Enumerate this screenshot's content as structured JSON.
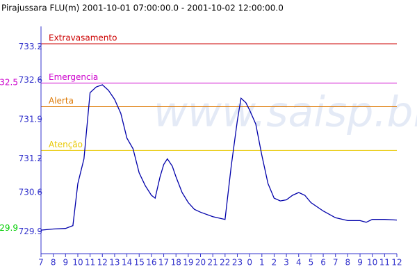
{
  "chart_data": {
    "type": "line",
    "title": "Pirajussara FLU(m) 2001-10-01 07:00:00.0 - 2001-10-02 12:00:00.0",
    "watermark": "www.saisp.br",
    "xlim": [
      7,
      36
    ],
    "xticks": [
      7,
      8,
      9,
      10,
      11,
      12,
      13,
      14,
      15,
      16,
      17,
      18,
      19,
      20,
      21,
      22,
      23,
      {
        "value": 24,
        "label": "0"
      },
      {
        "value": 25,
        "label": "1"
      },
      {
        "value": 26,
        "label": "2"
      },
      {
        "value": 27,
        "label": "3"
      },
      {
        "value": 28,
        "label": "4"
      },
      {
        "value": 29,
        "label": "5"
      },
      {
        "value": 30,
        "label": "6"
      },
      {
        "value": 31,
        "label": "7"
      },
      {
        "value": 32,
        "label": "8"
      },
      {
        "value": 33,
        "label": "9"
      },
      {
        "value": 34,
        "label": "10"
      },
      {
        "value": 35,
        "label": "11"
      },
      {
        "value": 36,
        "label": "12"
      }
    ],
    "ylim": [
      729.5,
      733.55
    ],
    "yticks": [
      729.9,
      730.6,
      731.2,
      731.9,
      732.6,
      733.2
    ],
    "thresholds": [
      {
        "name": "Extravasamento",
        "value": 733.24,
        "color": "#cc0000"
      },
      {
        "name": "Emergencia",
        "value": 732.54,
        "color": "#cc00cc"
      },
      {
        "name": "Alerta",
        "value": 732.12,
        "color": "#dd7700"
      },
      {
        "name": "Atenção",
        "value": 731.34,
        "color": "#e8c800"
      }
    ],
    "annotations": [
      {
        "text": "732.5",
        "value": 732.5,
        "color": "#cc00cc"
      },
      {
        "text": "729.9",
        "value": 729.9,
        "color": "#00cc00"
      }
    ],
    "series": [
      {
        "color": "#0000aa",
        "x": [
          7,
          8,
          9,
          9.6,
          10,
          10.5,
          11,
          11.5,
          12,
          12.5,
          13,
          13.5,
          14,
          14.5,
          15,
          15.5,
          16,
          16.3,
          16.7,
          17,
          17.3,
          17.7,
          18,
          18.5,
          19,
          19.5,
          20,
          21,
          22,
          22.5,
          23,
          23.3,
          23.7,
          24,
          24.5,
          25,
          25.5,
          26,
          26.5,
          27,
          27.5,
          28,
          28.5,
          29,
          30,
          31,
          32,
          33,
          33.5,
          34,
          35,
          36
        ],
        "values": [
          729.92,
          729.94,
          729.95,
          730.0,
          730.75,
          731.19,
          732.37,
          732.47,
          732.51,
          732.41,
          732.25,
          732.0,
          731.56,
          731.37,
          730.94,
          730.71,
          730.54,
          730.49,
          730.87,
          731.09,
          731.19,
          731.06,
          730.87,
          730.59,
          730.41,
          730.29,
          730.24,
          730.16,
          730.11,
          731.06,
          731.87,
          732.27,
          732.19,
          732.06,
          731.81,
          731.25,
          730.75,
          730.49,
          730.44,
          730.46,
          730.54,
          730.59,
          730.54,
          730.41,
          730.26,
          730.14,
          730.09,
          730.09,
          730.06,
          730.11,
          730.11,
          730.1
        ]
      }
    ]
  }
}
